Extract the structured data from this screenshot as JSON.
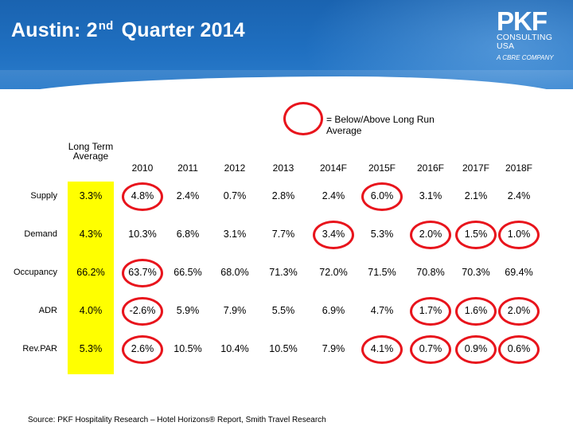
{
  "title": {
    "main_before": "Austin: 2",
    "superscript": "nd",
    "main_after": "Quarter 2014"
  },
  "logo": {
    "wordmark": "PKF",
    "line1": "CONSULTING",
    "line2": "USA",
    "tagline": "A CBRE COMPANY"
  },
  "legend": {
    "text": "= Below/Above Long Run Average",
    "ring_color": "#e8141c"
  },
  "table": {
    "headers": [
      "Long Term Average",
      "2010",
      "2011",
      "2012",
      "2013",
      "2014F",
      "2015F",
      "2016F",
      "2017F",
      "2018F"
    ],
    "rows": [
      {
        "label": "Supply",
        "values": [
          "3.3%",
          "4.8%",
          "2.4%",
          "0.7%",
          "2.8%",
          "2.4%",
          "6.0%",
          "3.1%",
          "2.1%",
          "2.4%"
        ],
        "circled": [
          false,
          true,
          false,
          false,
          false,
          false,
          true,
          false,
          false,
          false
        ]
      },
      {
        "label": "Demand",
        "values": [
          "4.3%",
          "10.3%",
          "6.8%",
          "3.1%",
          "7.7%",
          "3.4%",
          "5.3%",
          "2.0%",
          "1.5%",
          "1.0%"
        ],
        "circled": [
          false,
          false,
          false,
          false,
          false,
          true,
          false,
          true,
          true,
          true
        ]
      },
      {
        "label": "Occupancy",
        "values": [
          "66.2%",
          "63.7%",
          "66.5%",
          "68.0%",
          "71.3%",
          "72.0%",
          "71.5%",
          "70.8%",
          "70.3%",
          "69.4%"
        ],
        "circled": [
          false,
          true,
          false,
          false,
          false,
          false,
          false,
          false,
          false,
          false
        ]
      },
      {
        "label": "ADR",
        "values": [
          "4.0%",
          "-2.6%",
          "5.9%",
          "7.9%",
          "5.5%",
          "6.9%",
          "4.7%",
          "1.7%",
          "1.6%",
          "2.0%"
        ],
        "circled": [
          false,
          true,
          false,
          false,
          false,
          false,
          false,
          true,
          true,
          true
        ]
      },
      {
        "label": "Rev.PAR",
        "values": [
          "5.3%",
          "2.6%",
          "10.5%",
          "10.4%",
          "10.5%",
          "7.9%",
          "4.1%",
          "0.7%",
          "0.9%",
          "0.6%"
        ],
        "circled": [
          false,
          true,
          false,
          false,
          false,
          false,
          true,
          true,
          true,
          true
        ]
      }
    ],
    "highlight_color": "#ffff00"
  },
  "source": "Source: PKF Hospitality Research – Hotel Horizons® Report,  Smith Travel Research"
}
